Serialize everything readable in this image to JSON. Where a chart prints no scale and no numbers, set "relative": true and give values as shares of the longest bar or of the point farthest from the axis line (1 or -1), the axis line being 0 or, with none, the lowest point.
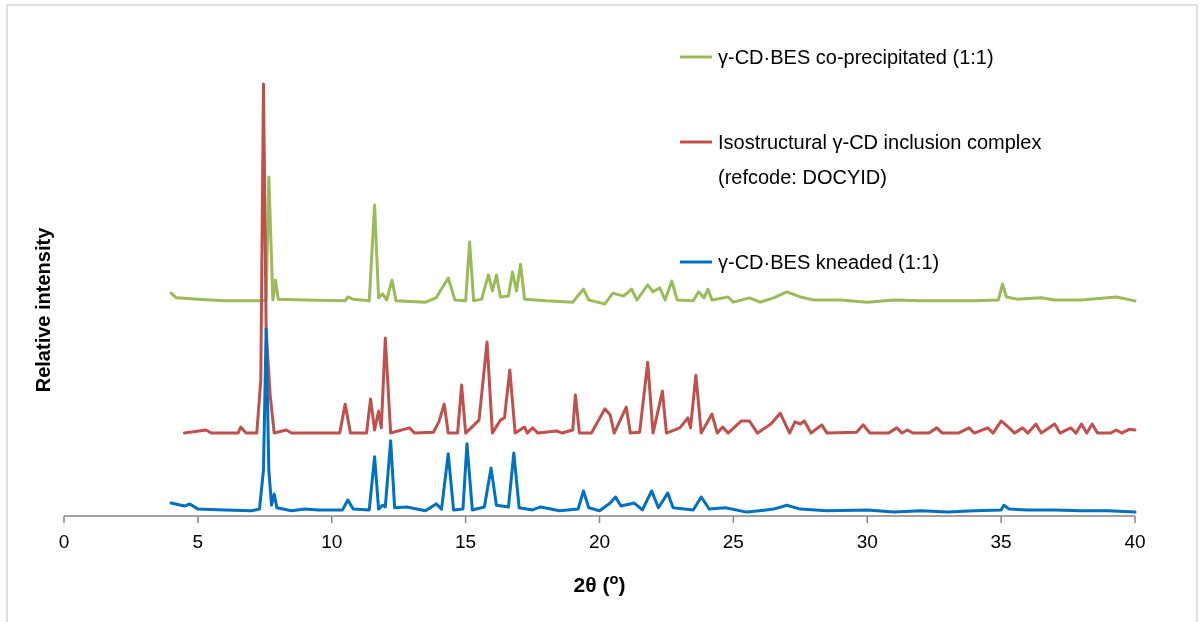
{
  "chart_data": {
    "type": "line",
    "relative": true,
    "xlabel": "2θ ($^{o}$)",
    "ylabel": "Relative intensity",
    "xlim": [
      0,
      40
    ],
    "xticks": [
      0,
      5,
      10,
      15,
      20,
      25,
      30,
      35,
      40
    ],
    "legend": "top right",
    "series": [
      {
        "name": "γ-CD·BES co-precipitated (1:1)",
        "color": "#9bbb59",
        "x": [
          4.0,
          4.2,
          5,
          6,
          7,
          7.35,
          7.55,
          7.65,
          7.8,
          7.9,
          8.0,
          9,
          10.5,
          10.6,
          10.8,
          11.4,
          11.6,
          11.75,
          11.9,
          12.05,
          12.25,
          12.4,
          13.5,
          13.9,
          14.35,
          14.6,
          15.0,
          15.15,
          15.3,
          15.6,
          15.85,
          16.0,
          16.15,
          16.3,
          16.6,
          16.75,
          16.9,
          17.05,
          17.2,
          18,
          19.0,
          19.4,
          19.6,
          20.2,
          20.5,
          20.9,
          21.2,
          21.4,
          21.8,
          22.0,
          22.25,
          22.45,
          22.7,
          22.9,
          23.5,
          23.7,
          23.9,
          24.05,
          24.2,
          24.8,
          25.0,
          25.6,
          26.0,
          26.5,
          27.0,
          27.5,
          28,
          29,
          30,
          31,
          32,
          33,
          34,
          34.9,
          35.05,
          35.2,
          35.6,
          36.5,
          37,
          38,
          39.3,
          40
        ],
        "values": [
          0.516,
          0.505,
          0.502,
          0.498,
          0.498,
          0.498,
          0.5,
          0.785,
          0.5,
          0.546,
          0.502,
          0.5,
          0.498,
          0.507,
          0.502,
          0.498,
          0.72,
          0.505,
          0.514,
          0.5,
          0.546,
          0.498,
          0.495,
          0.505,
          0.551,
          0.5,
          0.498,
          0.634,
          0.498,
          0.502,
          0.558,
          0.521,
          0.558,
          0.507,
          0.509,
          0.565,
          0.521,
          0.583,
          0.502,
          0.498,
          0.495,
          0.525,
          0.5,
          0.491,
          0.516,
          0.509,
          0.525,
          0.5,
          0.535,
          0.519,
          0.528,
          0.5,
          0.544,
          0.5,
          0.498,
          0.519,
          0.505,
          0.525,
          0.5,
          0.507,
          0.495,
          0.505,
          0.495,
          0.505,
          0.519,
          0.507,
          0.5,
          0.5,
          0.495,
          0.5,
          0.498,
          0.498,
          0.498,
          0.5,
          0.537,
          0.507,
          0.502,
          0.505,
          0.5,
          0.5,
          0.507,
          0.498
        ]
      },
      {
        "name": "Isostructural γ-CD inclusion complex\n(refcode: DOCYID)",
        "color": "#c0504d",
        "x": [
          4.5,
          5.3,
          5.5,
          6.5,
          6.6,
          6.8,
          7.2,
          7.35,
          7.45,
          7.55,
          7.7,
          7.85,
          8.3,
          8.5,
          10.3,
          10.5,
          10.7,
          11.3,
          11.45,
          11.6,
          11.75,
          11.85,
          12.0,
          12.2,
          12.9,
          13.1,
          13.8,
          14.0,
          14.2,
          14.35,
          14.7,
          14.85,
          15.0,
          15.5,
          15.8,
          16.0,
          16.3,
          16.45,
          16.65,
          16.85,
          17.2,
          17.3,
          17.5,
          17.7,
          18.4,
          18.6,
          19.0,
          19.1,
          19.25,
          19.7,
          20.2,
          20.4,
          20.55,
          21.0,
          21.15,
          21.5,
          21.8,
          22.0,
          22.35,
          22.5,
          23.0,
          23.3,
          23.4,
          23.6,
          23.8,
          24.2,
          24.4,
          24.6,
          24.8,
          25.3,
          25.6,
          25.9,
          26.4,
          26.75,
          27.1,
          27.3,
          27.5,
          27.65,
          27.9,
          28.3,
          28.5,
          29.6,
          29.85,
          30.1,
          30.8,
          31.1,
          31.3,
          31.5,
          31.7,
          32.3,
          32.6,
          32.8,
          33.4,
          33.8,
          34.0,
          34.5,
          34.7,
          35.0,
          35.3,
          35.5,
          35.8,
          36.0,
          36.3,
          36.5,
          37.0,
          37.2,
          37.6,
          37.8,
          38.0,
          38.2,
          38.4,
          38.6,
          39.1,
          39.3,
          39.5,
          39.8,
          40
        ],
        "values": [
          0.192,
          0.199,
          0.192,
          0.192,
          0.206,
          0.192,
          0.192,
          0.315,
          1,
          0.431,
          0.28,
          0.192,
          0.199,
          0.192,
          0.192,
          0.259,
          0.192,
          0.192,
          0.271,
          0.199,
          0.243,
          0.204,
          0.412,
          0.192,
          0.204,
          0.192,
          0.194,
          0.218,
          0.259,
          0.192,
          0.192,
          0.303,
          0.192,
          0.222,
          0.403,
          0.192,
          0.222,
          0.227,
          0.338,
          0.192,
          0.206,
          0.192,
          0.204,
          0.192,
          0.197,
          0.192,
          0.199,
          0.28,
          0.192,
          0.192,
          0.248,
          0.234,
          0.192,
          0.252,
          0.192,
          0.194,
          0.356,
          0.192,
          0.289,
          0.192,
          0.204,
          0.227,
          0.204,
          0.326,
          0.192,
          0.236,
          0.192,
          0.206,
          0.192,
          0.22,
          0.22,
          0.192,
          0.213,
          0.238,
          0.192,
          0.218,
          0.213,
          0.22,
          0.192,
          0.211,
          0.192,
          0.194,
          0.211,
          0.192,
          0.192,
          0.204,
          0.192,
          0.199,
          0.192,
          0.192,
          0.204,
          0.192,
          0.192,
          0.204,
          0.192,
          0.204,
          0.192,
          0.22,
          0.204,
          0.192,
          0.204,
          0.192,
          0.213,
          0.192,
          0.213,
          0.192,
          0.204,
          0.192,
          0.213,
          0.192,
          0.213,
          0.192,
          0.192,
          0.199,
          0.192,
          0.201,
          0.199
        ]
      },
      {
        "name": "γ-CD·BES kneaded (1:1)",
        "color": "#0070c0",
        "x": [
          4,
          4.5,
          4.7,
          5,
          6,
          7,
          7.3,
          7.45,
          7.55,
          7.65,
          7.75,
          7.85,
          7.95,
          8.5,
          9,
          9.5,
          10.4,
          10.6,
          10.8,
          11.4,
          11.6,
          11.75,
          11.9,
          12.0,
          12.2,
          12.35,
          12.8,
          13.5,
          13.9,
          14.1,
          14.35,
          14.55,
          14.9,
          15.05,
          15.25,
          15.7,
          15.95,
          16.15,
          16.6,
          16.8,
          17.0,
          17.5,
          17.8,
          18.5,
          19.2,
          19.4,
          19.6,
          20.0,
          20.4,
          20.6,
          20.8,
          21.3,
          21.6,
          21.95,
          22.2,
          22.55,
          22.75,
          23.5,
          23.8,
          24.1,
          24.7,
          25.5,
          26.5,
          27.0,
          27.5,
          28.5,
          30,
          31,
          32,
          33,
          34,
          35,
          35.1,
          35.3,
          36,
          37,
          38,
          39,
          40
        ],
        "values": [
          0.03,
          0.023,
          0.028,
          0.016,
          0.014,
          0.012,
          0.016,
          0.106,
          0.433,
          0.106,
          0.025,
          0.051,
          0.019,
          0.012,
          0.016,
          0.014,
          0.014,
          0.037,
          0.016,
          0.014,
          0.137,
          0.016,
          0.025,
          0.021,
          0.174,
          0.019,
          0.021,
          0.012,
          0.028,
          0.016,
          0.144,
          0.014,
          0.016,
          0.167,
          0.014,
          0.021,
          0.111,
          0.025,
          0.021,
          0.146,
          0.019,
          0.014,
          0.021,
          0.012,
          0.016,
          0.058,
          0.019,
          0.012,
          0.03,
          0.044,
          0.023,
          0.03,
          0.014,
          0.058,
          0.019,
          0.053,
          0.019,
          0.014,
          0.044,
          0.016,
          0.019,
          0.009,
          0.016,
          0.025,
          0.016,
          0.012,
          0.014,
          0.009,
          0.012,
          0.009,
          0.012,
          0.014,
          0.025,
          0.016,
          0.014,
          0.014,
          0.012,
          0.012,
          0.009
        ]
      }
    ]
  }
}
